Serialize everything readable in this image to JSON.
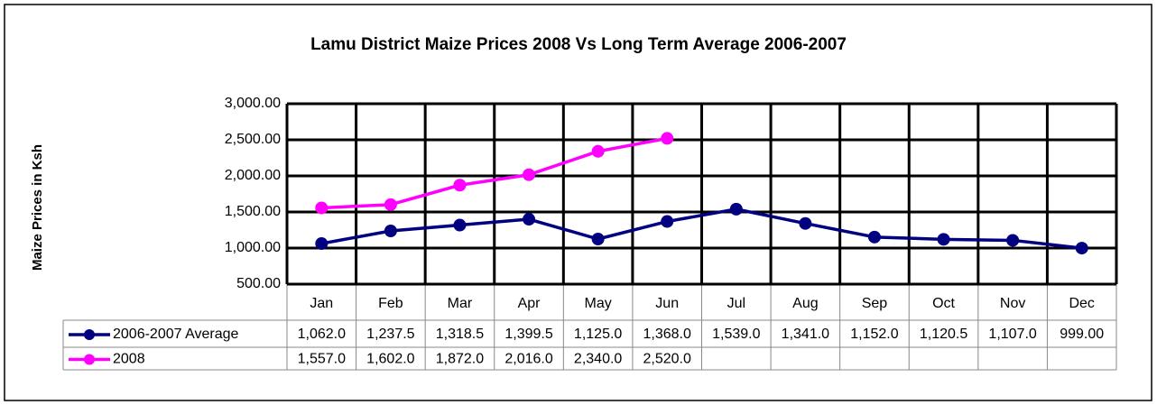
{
  "chart_data": {
    "type": "line",
    "title": "Lamu District Maize Prices 2008 Vs Long Term Average 2006-2007",
    "y_label": "Maize Prices in Ksh",
    "categories": [
      "Jan",
      "Feb",
      "Mar",
      "Apr",
      "May",
      "Jun",
      "Jul",
      "Aug",
      "Sep",
      "Oct",
      "Nov",
      "Dec"
    ],
    "series": [
      {
        "name": "2006-2007 Average",
        "color": "#000080",
        "values": [
          1062.0,
          1237.5,
          1318.5,
          1399.5,
          1125.0,
          1368.0,
          1539.0,
          1341.0,
          1152.0,
          1120.5,
          1107.0,
          999.0
        ],
        "value_labels": [
          "1,062.0",
          "1,237.5",
          "1,318.5",
          "1,399.5",
          "1,125.0",
          "1,368.0",
          "1,539.0",
          "1,341.0",
          "1,152.0",
          "1,120.5",
          "1,107.0",
          "999.00"
        ]
      },
      {
        "name": "2008",
        "color": "#ff00ff",
        "values": [
          1557.0,
          1602.0,
          1872.0,
          2016.0,
          2340.0,
          2520.0,
          null,
          null,
          null,
          null,
          null,
          null
        ],
        "value_labels": [
          "1,557.0",
          "1,602.0",
          "1,872.0",
          "2,016.0",
          "2,340.0",
          "2,520.0",
          null,
          null,
          null,
          null,
          null,
          null
        ]
      }
    ],
    "ylim": [
      500,
      3000
    ],
    "yticks": [
      {
        "value": 500,
        "label": "500.00"
      },
      {
        "value": 1000,
        "label": "1,000.00"
      },
      {
        "value": 1500,
        "label": "1,500.00"
      },
      {
        "value": 2000,
        "label": "2,000.00"
      },
      {
        "value": 2500,
        "label": "2,500.00"
      },
      {
        "value": 3000,
        "label": "3,000.00"
      }
    ],
    "grid": true
  }
}
